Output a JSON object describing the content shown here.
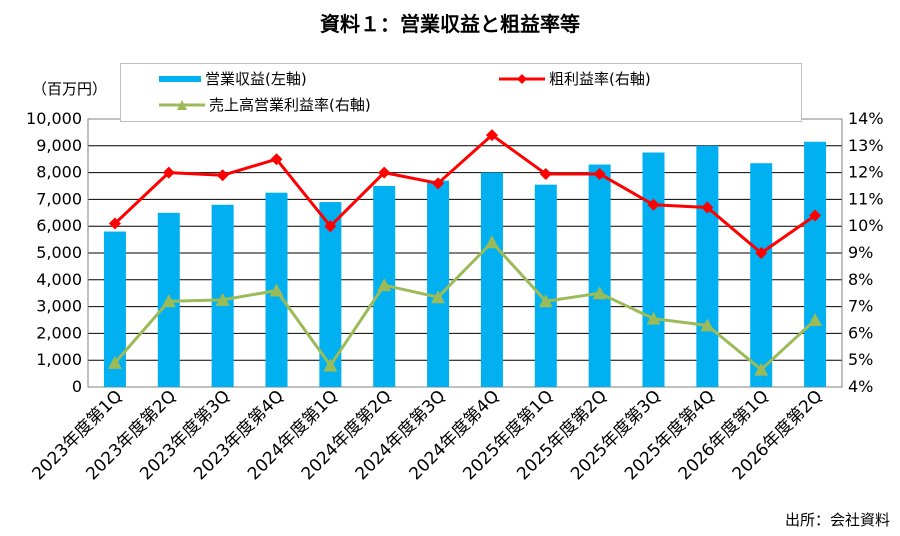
{
  "title": "資料１：営業収益と粗益率等",
  "unit_label": "（百万円）",
  "source_label": "出所：会社資料",
  "colors": {
    "bar": "#00b0f0",
    "gross_margin": "#ff0000",
    "op_margin": "#9bbb59"
  },
  "chart_data": {
    "type": "bar",
    "title": "資料１：営業収益と粗益率等",
    "categories": [
      "2023年度第1Q",
      "2023年度第2Q",
      "2023年度第3Q",
      "2023年度第4Q",
      "2024年度第1Q",
      "2024年度第2Q",
      "2024年度第3Q",
      "2024年度第4Q",
      "2025年度第1Q",
      "2025年度第2Q",
      "2025年度第3Q",
      "2025年度第4Q",
      "2026年度第1Q",
      "2026年度第2Q"
    ],
    "y_left": {
      "label": "（百万円）",
      "min": 0,
      "max": 10000,
      "step": 1000,
      "ticks": [
        "0",
        "1,000",
        "2,000",
        "3,000",
        "4,000",
        "5,000",
        "6,000",
        "7,000",
        "8,000",
        "9,000",
        "10,000"
      ]
    },
    "y_right": {
      "min": 4,
      "max": 14,
      "step": 1,
      "ticks": [
        "4%",
        "5%",
        "6%",
        "7%",
        "8%",
        "9%",
        "10%",
        "11%",
        "12%",
        "13%",
        "14%"
      ]
    },
    "grid": true,
    "legend_position": "top",
    "series": [
      {
        "name": "営業収益(左軸)",
        "type": "bar",
        "axis": "left",
        "values": [
          5800,
          6500,
          6800,
          7250,
          6900,
          7500,
          7700,
          8000,
          7550,
          8300,
          8750,
          9000,
          8350,
          9150
        ]
      },
      {
        "name": "粗利益率(右軸)",
        "type": "line",
        "axis": "right",
        "marker": "diamond",
        "values": [
          10.1,
          12.0,
          11.9,
          12.5,
          10.0,
          12.0,
          11.6,
          13.4,
          11.95,
          11.95,
          10.8,
          10.7,
          9.0,
          10.4
        ]
      },
      {
        "name": "売上高営業利益率(右軸)",
        "type": "line",
        "axis": "right",
        "marker": "triangle",
        "values": [
          4.9,
          7.2,
          7.25,
          7.6,
          4.8,
          7.8,
          7.35,
          9.4,
          7.2,
          7.5,
          6.55,
          6.3,
          4.65,
          6.5
        ]
      }
    ]
  }
}
